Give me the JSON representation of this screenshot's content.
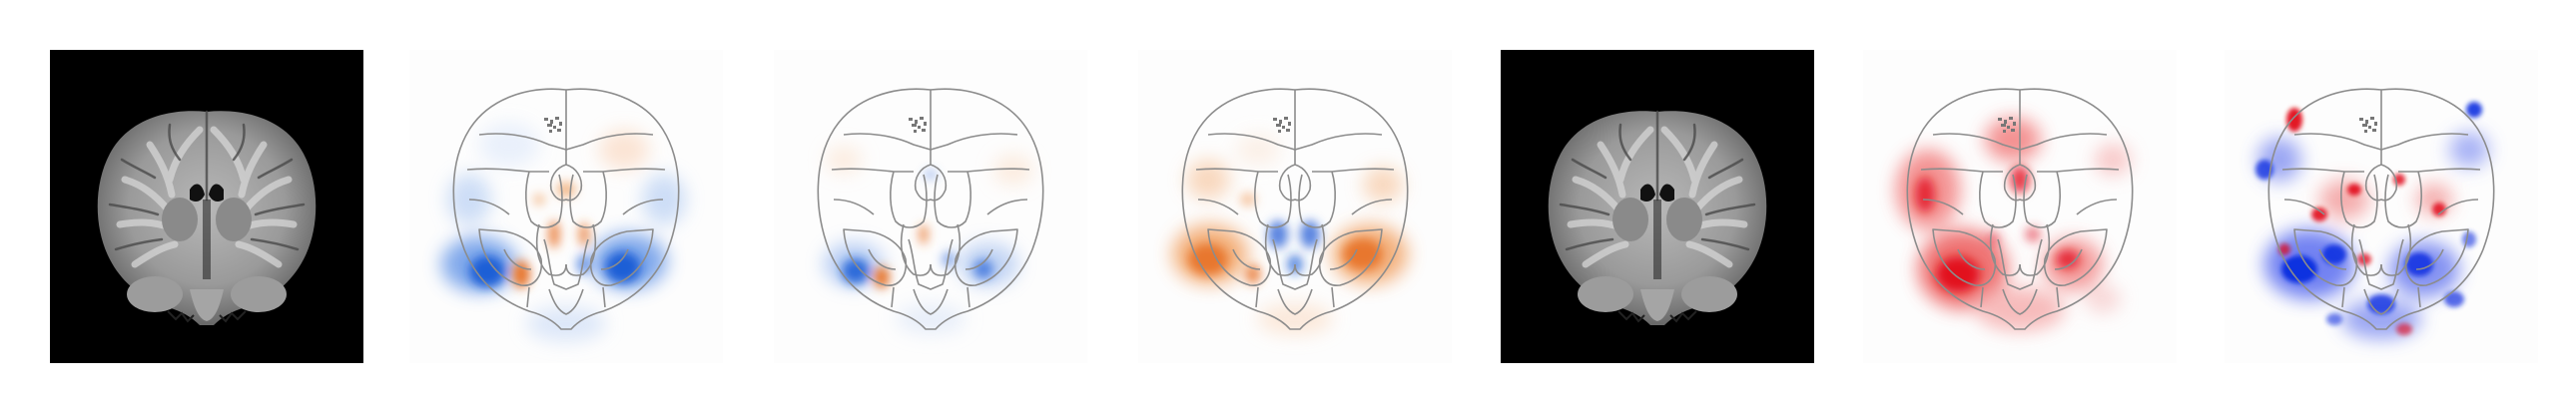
{
  "figure": {
    "panels": [
      {
        "id": "p1",
        "kind": "anatomical-mri",
        "background": "#000000"
      },
      {
        "id": "p2",
        "kind": "activation-overlay",
        "colormap": [
          "#1f5fd6",
          "#ffffff",
          "#e8772e"
        ]
      },
      {
        "id": "p3",
        "kind": "activation-overlay",
        "colormap": [
          "#1f5fd6",
          "#ffffff",
          "#e8772e"
        ]
      },
      {
        "id": "p4",
        "kind": "activation-overlay",
        "colormap": [
          "#1f5fd6",
          "#ffffff",
          "#e8772e"
        ]
      },
      {
        "id": "p5",
        "kind": "anatomical-mri",
        "background": "#000000"
      },
      {
        "id": "p6",
        "kind": "activation-overlay",
        "colormap": [
          "#1030e0",
          "#ffffff",
          "#e00010"
        ]
      },
      {
        "id": "p7",
        "kind": "activation-overlay",
        "colormap": [
          "#1030e0",
          "#ffffff",
          "#e00010"
        ]
      }
    ],
    "atlas_outline_color": "#8c8c8c"
  }
}
